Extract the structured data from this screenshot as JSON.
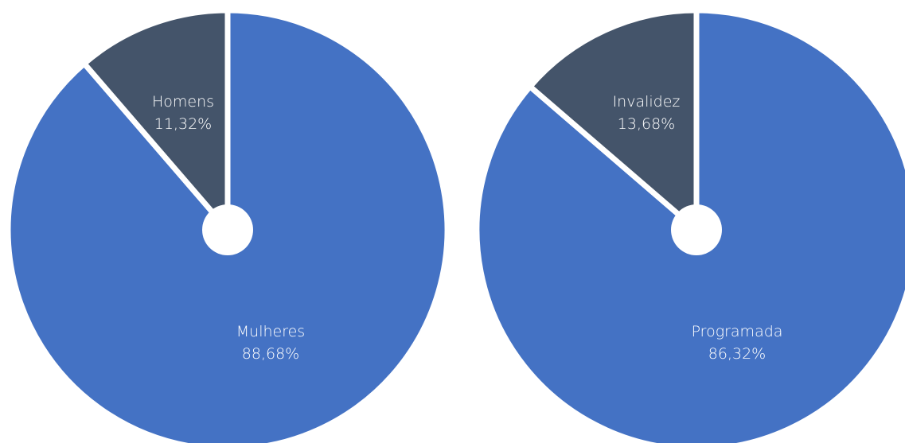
{
  "chart_data": [
    {
      "type": "pie",
      "title": "",
      "slices": [
        {
          "label": "Homens",
          "value": 11.32,
          "value_label": "11,32%",
          "color": "#44546a"
        },
        {
          "label": "Mulheres",
          "value": 88.68,
          "value_label": "88,68%",
          "color": "#4472c4"
        }
      ],
      "legend": "none",
      "start": "top (12 o'clock), clockwise from the large slice"
    },
    {
      "type": "pie",
      "title": "",
      "slices": [
        {
          "label": "Invalidez",
          "value": 13.68,
          "value_label": "13,68%",
          "color": "#44546a"
        },
        {
          "label": "Programada",
          "value": 86.32,
          "value_label": "86,32%",
          "color": "#4472c4"
        }
      ],
      "legend": "none",
      "start": "top (12 o'clock), clockwise from the large slice"
    }
  ],
  "colors": {
    "background": "#ffffff",
    "label_text": "#ffffff",
    "separator": "#ffffff"
  }
}
